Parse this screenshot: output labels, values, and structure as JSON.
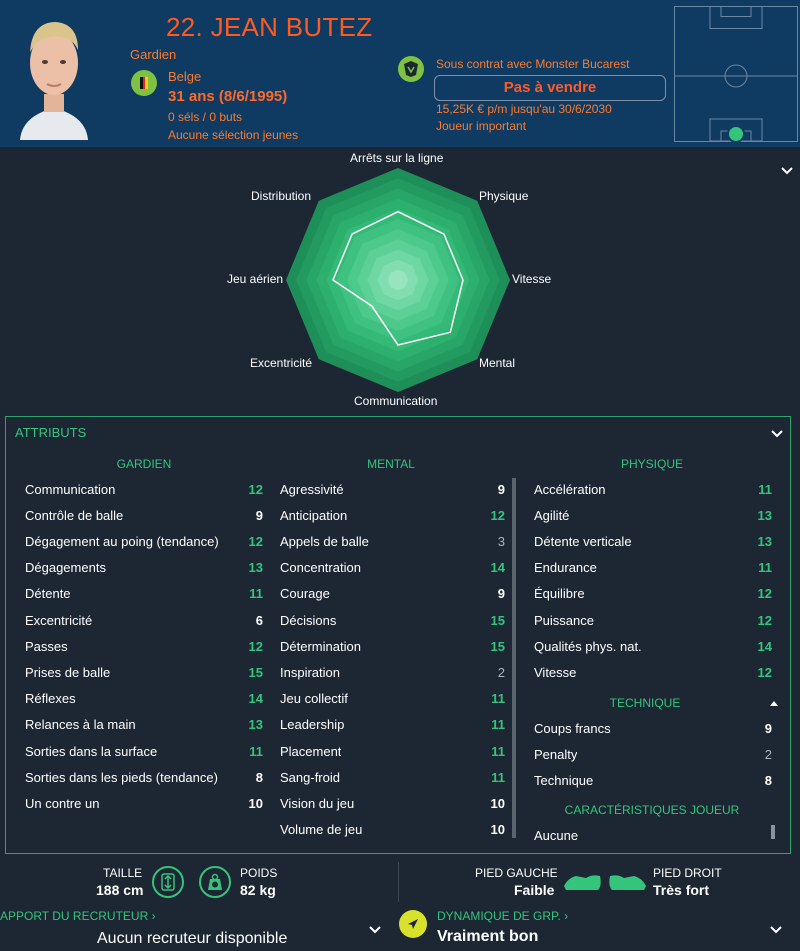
{
  "player": {
    "name": "22. JEAN BUTEZ",
    "position": "Gardien",
    "nationality": "Belge",
    "age": "31 ans (8/6/1995)",
    "caps": "0 séls / 0 buts",
    "youth_caps": "Aucune sélection jeunes"
  },
  "contract": {
    "club": "Sous contrat avec Monster Bucarest",
    "sale_status": "Pas à vendre",
    "wage": "15,25K € p/m jusqu'au 30/6/2030",
    "role": "Joueur important"
  },
  "radar": {
    "labels": [
      "Arrêts sur la ligne",
      "Physique",
      "Vitesse",
      "Mental",
      "Communication",
      "Excentricité",
      "Jeu aérien",
      "Distribution"
    ]
  },
  "attributes": {
    "title": "ATTRIBUTS",
    "goalkeeping_title": "GARDIEN",
    "mental_title": "MENTAL",
    "physical_title": "PHYSIQUE",
    "technical_title": "TECHNIQUE",
    "traits_title": "CARACTÉRISTIQUES JOUEUR",
    "traits_first": "Aucune",
    "goalkeeping": [
      {
        "label": "Communication",
        "value": "12",
        "color": "#35c47c"
      },
      {
        "label": "Contrôle de balle",
        "value": "9",
        "color": "#ffffff"
      },
      {
        "label": "Dégagement au poing (tendance)",
        "value": "12",
        "color": "#35c47c"
      },
      {
        "label": "Dégagements",
        "value": "13",
        "color": "#35c47c"
      },
      {
        "label": "Détente",
        "value": "11",
        "color": "#35c47c"
      },
      {
        "label": "Excentricité",
        "value": "6",
        "color": "#ffffff"
      },
      {
        "label": "Passes",
        "value": "12",
        "color": "#35c47c"
      },
      {
        "label": "Prises de balle",
        "value": "15",
        "color": "#35c47c"
      },
      {
        "label": "Réflexes",
        "value": "14",
        "color": "#35c47c"
      },
      {
        "label": "Relances à la main",
        "value": "13",
        "color": "#35c47c"
      },
      {
        "label": "Sorties dans la surface",
        "value": "11",
        "color": "#35c47c"
      },
      {
        "label": "Sorties dans les pieds (tendance)",
        "value": "8",
        "color": "#ffffff"
      },
      {
        "label": "Un contre un",
        "value": "10",
        "color": "#ffffff"
      }
    ],
    "mental": [
      {
        "label": "Agressivité",
        "value": "9",
        "color": "#ffffff"
      },
      {
        "label": "Anticipation",
        "value": "12",
        "color": "#35c47c"
      },
      {
        "label": "Appels de balle",
        "value": "3",
        "color": "#aab2ba"
      },
      {
        "label": "Concentration",
        "value": "14",
        "color": "#35c47c"
      },
      {
        "label": "Courage",
        "value": "9",
        "color": "#ffffff"
      },
      {
        "label": "Décisions",
        "value": "15",
        "color": "#35c47c"
      },
      {
        "label": "Détermination",
        "value": "15",
        "color": "#35c47c"
      },
      {
        "label": "Inspiration",
        "value": "2",
        "color": "#aab2ba"
      },
      {
        "label": "Jeu collectif",
        "value": "11",
        "color": "#35c47c"
      },
      {
        "label": "Leadership",
        "value": "11",
        "color": "#35c47c"
      },
      {
        "label": "Placement",
        "value": "11",
        "color": "#35c47c"
      },
      {
        "label": "Sang-froid",
        "value": "11",
        "color": "#35c47c"
      },
      {
        "label": "Vision du jeu",
        "value": "10",
        "color": "#ffffff"
      },
      {
        "label": "Volume de jeu",
        "value": "10",
        "color": "#ffffff"
      }
    ],
    "physical": [
      {
        "label": "Accélération",
        "value": "11",
        "color": "#35c47c"
      },
      {
        "label": "Agilité",
        "value": "13",
        "color": "#35c47c"
      },
      {
        "label": "Détente verticale",
        "value": "13",
        "color": "#35c47c"
      },
      {
        "label": "Endurance",
        "value": "11",
        "color": "#35c47c"
      },
      {
        "label": "Équilibre",
        "value": "12",
        "color": "#35c47c"
      },
      {
        "label": "Puissance",
        "value": "12",
        "color": "#35c47c"
      },
      {
        "label": "Qualités phys. nat.",
        "value": "14",
        "color": "#35c47c"
      },
      {
        "label": "Vitesse",
        "value": "12",
        "color": "#35c47c"
      }
    ],
    "technical": [
      {
        "label": "Coups francs",
        "value": "9",
        "color": "#ffffff"
      },
      {
        "label": "Penalty",
        "value": "2",
        "color": "#aab2ba"
      },
      {
        "label": "Technique",
        "value": "8",
        "color": "#ffffff"
      }
    ]
  },
  "footer": {
    "height_label": "TAILLE",
    "height_value": "188 cm",
    "weight_label": "POIDS",
    "weight_value": "82 kg",
    "left_foot_label": "PIED GAUCHE",
    "left_foot_value": "Faible",
    "right_foot_label": "PIED DROIT",
    "right_foot_value": "Très fort",
    "scout_link": "APPORT DU RECRUTEUR ›",
    "scout_value": "Aucun recruteur disponible",
    "dynamics_link": "DYNAMIQUE DE GRP. ›",
    "dynamics_value": "Vraiment bon"
  },
  "colors": {
    "accent": "#35c47c",
    "header_bg": "#0f3b63",
    "orange": "#ff5a1f"
  }
}
